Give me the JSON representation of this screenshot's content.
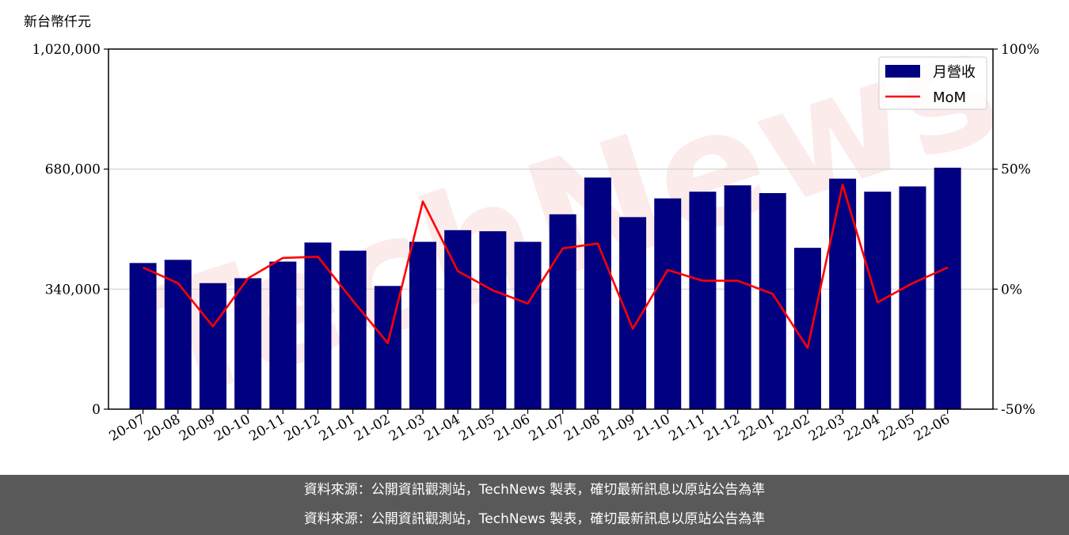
{
  "chart_data": {
    "type": "bar+line",
    "y_unit_label": "新台幣仟元",
    "categories": [
      "20-07",
      "20-08",
      "20-09",
      "20-10",
      "20-11",
      "20-12",
      "21-01",
      "21-02",
      "21-03",
      "21-04",
      "21-05",
      "21-06",
      "21-07",
      "21-08",
      "21-09",
      "21-10",
      "21-11",
      "21-12",
      "22-01",
      "22-02",
      "22-03",
      "22-04",
      "22-05",
      "22-06"
    ],
    "series": [
      {
        "name": "月營收",
        "type": "bar",
        "axis": "left",
        "color": "#000080",
        "values": [
          414000,
          423000,
          357000,
          371000,
          418000,
          472000,
          449000,
          349000,
          474000,
          507000,
          504000,
          474000,
          552000,
          656000,
          544000,
          597000,
          616000,
          634000,
          612000,
          457000,
          653000,
          616000,
          631000,
          684000
        ]
      },
      {
        "name": "MoM",
        "type": "line",
        "axis": "right",
        "color": "#ff0000",
        "values": [
          9.0,
          2.5,
          -15.5,
          4.5,
          13.0,
          13.5,
          -4.8,
          -22.5,
          36.5,
          7.5,
          -0.5,
          -6.0,
          17.0,
          19.0,
          -16.5,
          8.0,
          3.5,
          3.5,
          -2.0,
          -24.5,
          43.5,
          -5.5,
          2.5,
          9.0
        ]
      }
    ],
    "y_left": {
      "min": 0,
      "max": 1020000,
      "ticks": [
        0,
        340000,
        680000,
        1020000
      ],
      "tick_labels": [
        "0",
        "340,000",
        "680,000",
        "1,020,000"
      ]
    },
    "y_right": {
      "min": -50,
      "max": 100,
      "ticks": [
        -50,
        0,
        50,
        100
      ],
      "tick_labels": [
        "-50%",
        "0%",
        "50%",
        "100%"
      ]
    },
    "grid": "horizontal",
    "legend": {
      "position": "top-right",
      "entries": [
        {
          "label": "月營收",
          "symbol": "bar",
          "color": "#000080"
        },
        {
          "label": "MoM",
          "symbol": "line",
          "color": "#ff0000"
        }
      ]
    },
    "watermark": "TechNews"
  },
  "footer": {
    "line1": "資料來源：公開資訊觀測站，TechNews 製表，確切最新訊息以原站公告為準",
    "line2": "資料來源：公開資訊觀測站，TechNews 製表，確切最新訊息以原站公告為準"
  }
}
